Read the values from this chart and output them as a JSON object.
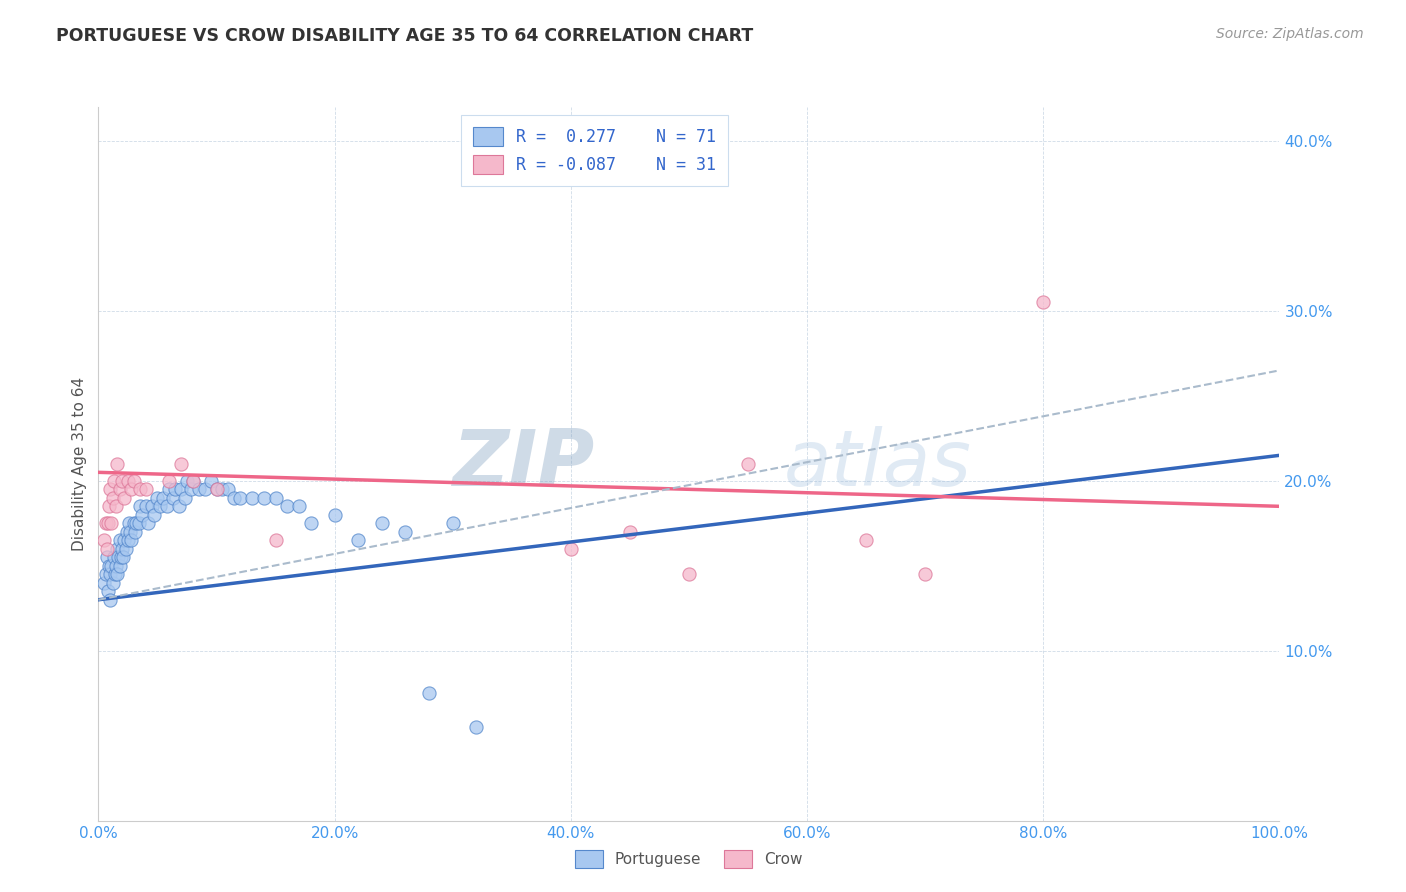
{
  "title": "PORTUGUESE VS CROW DISABILITY AGE 35 TO 64 CORRELATION CHART",
  "source": "Source: ZipAtlas.com",
  "ylabel": "Disability Age 35 to 64",
  "watermark": "ZIPatlas",
  "xlim": [
    0.0,
    1.0
  ],
  "ylim": [
    0.0,
    0.42
  ],
  "xtick_vals": [
    0.0,
    0.2,
    0.4,
    0.6,
    0.8,
    1.0
  ],
  "xtick_labels": [
    "0.0%",
    "20.0%",
    "40.0%",
    "60.0%",
    "80.0%",
    "100.0%"
  ],
  "ytick_vals": [
    0.1,
    0.2,
    0.3,
    0.4
  ],
  "ytick_labels": [
    "10.0%",
    "20.0%",
    "30.0%",
    "40.0%"
  ],
  "color_blue_fill": "#A8C8F0",
  "color_blue_edge": "#5588CC",
  "color_pink_fill": "#F5B8CB",
  "color_pink_edge": "#DD7799",
  "trend_blue_color": "#3366BB",
  "trend_pink_color": "#EE6688",
  "trend_dash_color": "#AABBCC",
  "portuguese_x": [
    0.005,
    0.006,
    0.007,
    0.008,
    0.009,
    0.01,
    0.01,
    0.011,
    0.012,
    0.013,
    0.014,
    0.015,
    0.016,
    0.016,
    0.017,
    0.018,
    0.018,
    0.019,
    0.02,
    0.021,
    0.022,
    0.023,
    0.024,
    0.025,
    0.026,
    0.027,
    0.028,
    0.03,
    0.031,
    0.032,
    0.034,
    0.035,
    0.037,
    0.04,
    0.042,
    0.045,
    0.047,
    0.05,
    0.052,
    0.055,
    0.058,
    0.06,
    0.063,
    0.065,
    0.068,
    0.07,
    0.073,
    0.075,
    0.078,
    0.08,
    0.085,
    0.09,
    0.095,
    0.1,
    0.105,
    0.11,
    0.115,
    0.12,
    0.13,
    0.14,
    0.15,
    0.16,
    0.17,
    0.18,
    0.2,
    0.22,
    0.24,
    0.26,
    0.28,
    0.3,
    0.32
  ],
  "portuguese_y": [
    0.14,
    0.145,
    0.155,
    0.135,
    0.15,
    0.13,
    0.145,
    0.15,
    0.14,
    0.155,
    0.145,
    0.15,
    0.145,
    0.16,
    0.155,
    0.15,
    0.165,
    0.155,
    0.16,
    0.155,
    0.165,
    0.16,
    0.17,
    0.165,
    0.175,
    0.17,
    0.165,
    0.175,
    0.17,
    0.175,
    0.175,
    0.185,
    0.18,
    0.185,
    0.175,
    0.185,
    0.18,
    0.19,
    0.185,
    0.19,
    0.185,
    0.195,
    0.19,
    0.195,
    0.185,
    0.195,
    0.19,
    0.2,
    0.195,
    0.2,
    0.195,
    0.195,
    0.2,
    0.195,
    0.195,
    0.195,
    0.19,
    0.19,
    0.19,
    0.19,
    0.19,
    0.185,
    0.185,
    0.175,
    0.18,
    0.165,
    0.175,
    0.17,
    0.075,
    0.175,
    0.055
  ],
  "crow_x": [
    0.005,
    0.006,
    0.007,
    0.008,
    0.009,
    0.01,
    0.011,
    0.012,
    0.013,
    0.015,
    0.016,
    0.018,
    0.02,
    0.022,
    0.025,
    0.028,
    0.03,
    0.035,
    0.04,
    0.06,
    0.07,
    0.08,
    0.1,
    0.15,
    0.4,
    0.45,
    0.5,
    0.55,
    0.65,
    0.7,
    0.8
  ],
  "crow_y": [
    0.165,
    0.175,
    0.16,
    0.175,
    0.185,
    0.195,
    0.175,
    0.19,
    0.2,
    0.185,
    0.21,
    0.195,
    0.2,
    0.19,
    0.2,
    0.195,
    0.2,
    0.195,
    0.195,
    0.2,
    0.21,
    0.2,
    0.195,
    0.165,
    0.16,
    0.17,
    0.145,
    0.21,
    0.165,
    0.145,
    0.305
  ],
  "blue_trend_x0": 0.0,
  "blue_trend_x1": 1.0,
  "blue_trend_y0": 0.13,
  "blue_trend_y1": 0.215,
  "pink_trend_x0": 0.0,
  "pink_trend_x1": 1.0,
  "pink_trend_y0": 0.205,
  "pink_trend_y1": 0.185,
  "dash_trend_x0": 0.0,
  "dash_trend_x1": 1.0,
  "dash_trend_y0": 0.13,
  "dash_trend_y1": 0.265
}
